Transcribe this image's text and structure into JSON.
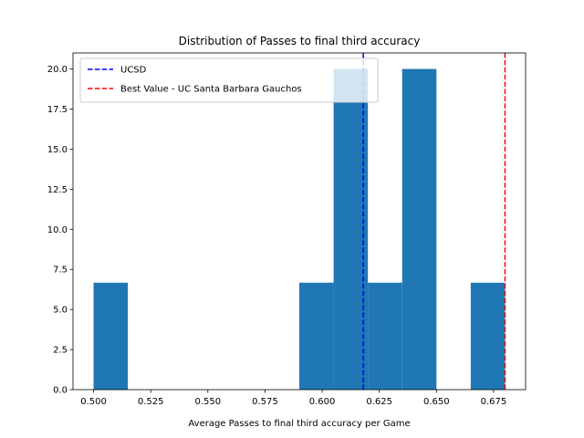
{
  "chart_data": {
    "type": "bar",
    "title": "Distribution of Passes to final third accuracy",
    "xlabel": "Average Passes to final third accuracy per Game",
    "ylabel": "",
    "xlim": [
      0.491,
      0.689
    ],
    "ylim": [
      0,
      21
    ],
    "xticks": [
      "0.500",
      "0.525",
      "0.550",
      "0.575",
      "0.600",
      "0.625",
      "0.650",
      "0.675"
    ],
    "yticks": [
      "0.0",
      "2.5",
      "5.0",
      "7.5",
      "10.0",
      "12.5",
      "15.0",
      "17.5",
      "20.0"
    ],
    "bar_color": "#1f77b4",
    "bins": [
      {
        "x0": 0.5,
        "x1": 0.515,
        "value": 6.67
      },
      {
        "x0": 0.515,
        "x1": 0.53,
        "value": 0
      },
      {
        "x0": 0.53,
        "x1": 0.545,
        "value": 0
      },
      {
        "x0": 0.545,
        "x1": 0.56,
        "value": 0
      },
      {
        "x0": 0.56,
        "x1": 0.575,
        "value": 0
      },
      {
        "x0": 0.575,
        "x1": 0.59,
        "value": 0
      },
      {
        "x0": 0.59,
        "x1": 0.605,
        "value": 6.67
      },
      {
        "x0": 0.605,
        "x1": 0.62,
        "value": 20.0
      },
      {
        "x0": 0.62,
        "x1": 0.635,
        "value": 6.67
      },
      {
        "x0": 0.635,
        "x1": 0.65,
        "value": 20.0
      },
      {
        "x0": 0.65,
        "x1": 0.665,
        "value": 0
      },
      {
        "x0": 0.665,
        "x1": 0.68,
        "value": 6.67
      }
    ],
    "reference_lines": [
      {
        "label": "UCSD",
        "x": 0.618,
        "color": "#0000ff"
      },
      {
        "label": "Best Value - UC Santa Barbara Gauchos",
        "x": 0.68,
        "color": "#ff0000"
      }
    ],
    "legend_position": "top-left",
    "grid": false
  }
}
